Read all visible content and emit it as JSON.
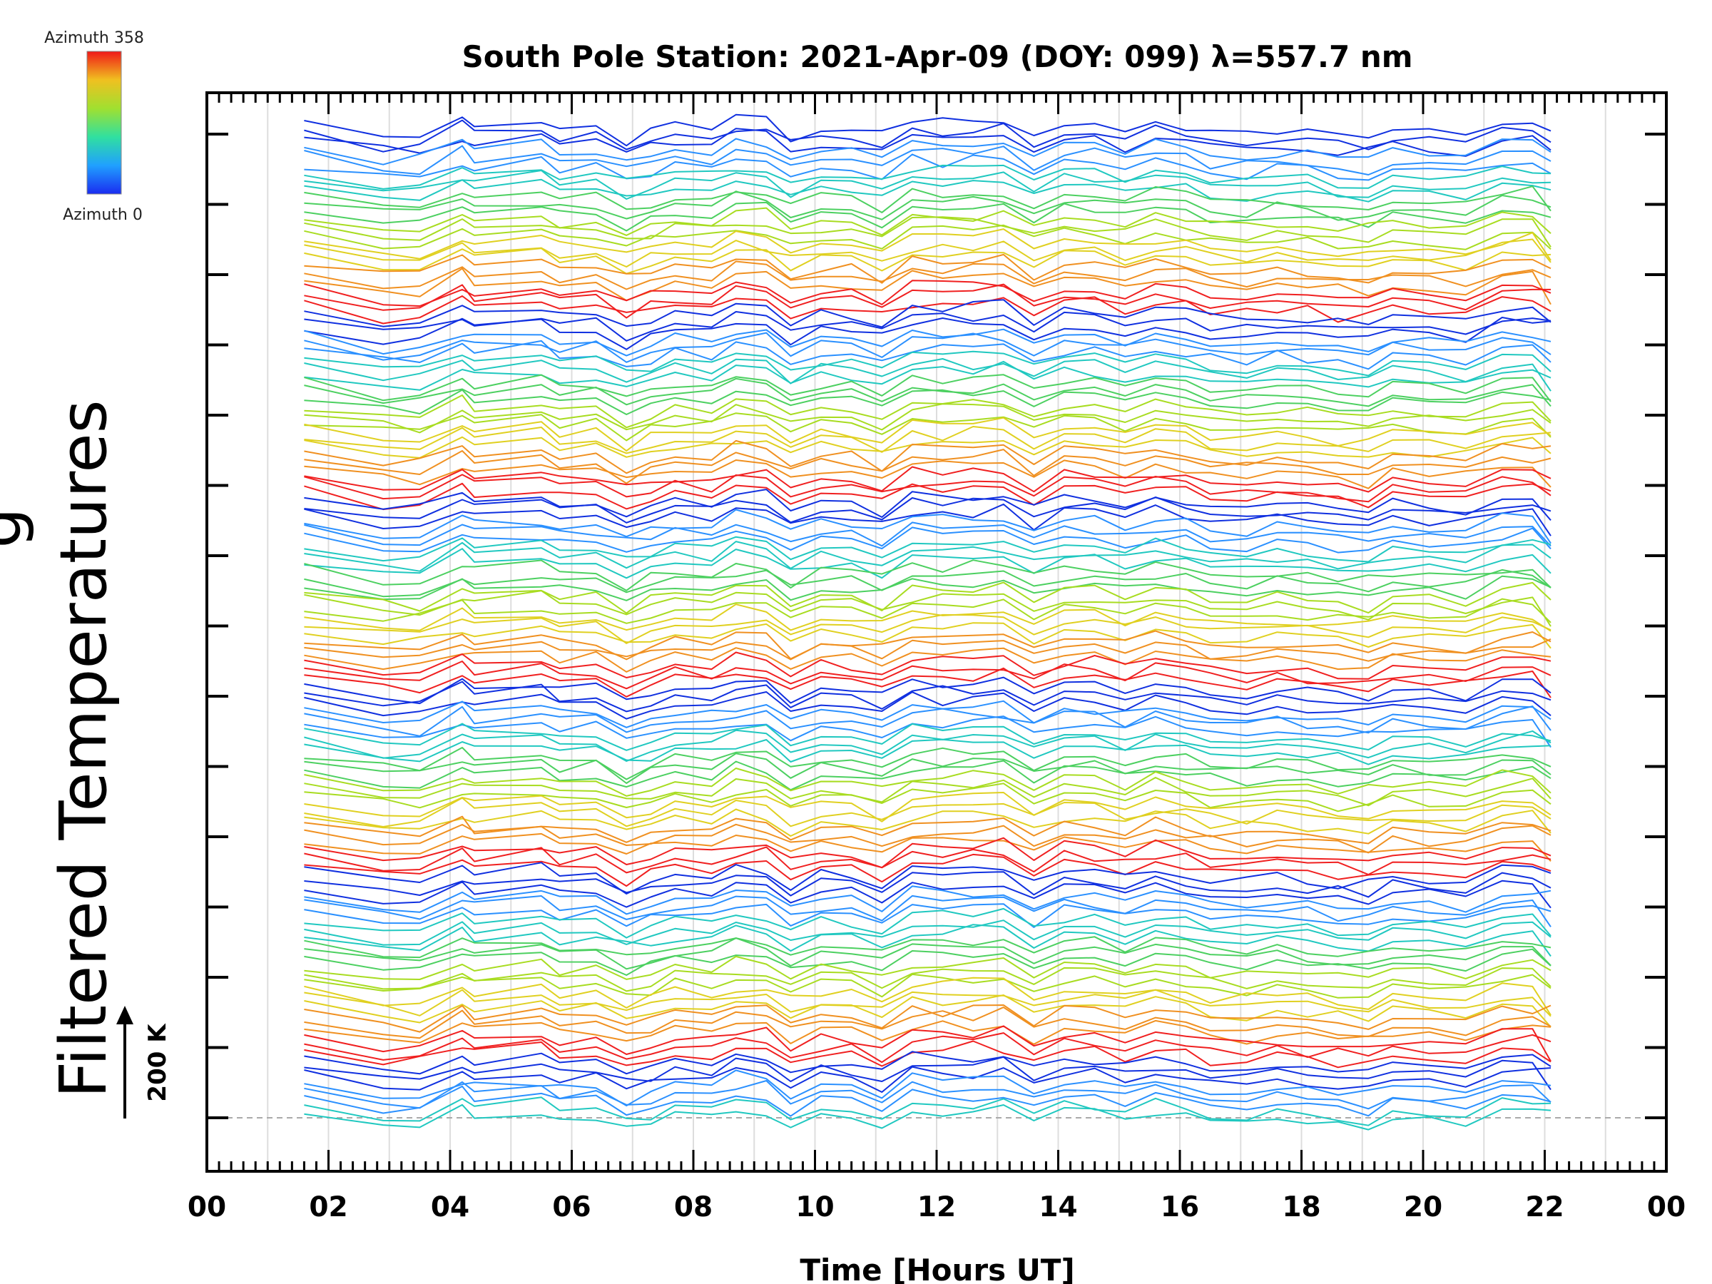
{
  "chart_data": {
    "type": "line",
    "title": "South Pole Station: 2021-Apr-09 (DOY: 099) λ=557.7 nm",
    "xlabel": "Time [Hours UT]",
    "ylabel": "Filtered Temperatures",
    "ylabel_fragment": "g",
    "xlim": [
      0,
      24
    ],
    "x_ticks": [
      "00",
      "02",
      "04",
      "06",
      "08",
      "10",
      "12",
      "14",
      "16",
      "18",
      "20",
      "22",
      "00"
    ],
    "y_tick_count": 15,
    "grid": "vertical",
    "colorbar": {
      "top_label": "Azimuth 358",
      "bottom_label": "Azimuth 0",
      "colormap": "rainbow (blue to red)"
    },
    "scale_bar": {
      "label": "200 K",
      "value_k": 200
    },
    "trace_count": 128,
    "time_range_hours": [
      1.6,
      22.1
    ],
    "time_samples": [
      1.6,
      2.9,
      3.5,
      4.2,
      4.4,
      5.5,
      5.8,
      6.4,
      6.9,
      7.3,
      7.7,
      8.3,
      8.7,
      9.2,
      9.6,
      10.1,
      10.6,
      11.1,
      11.6,
      12.1,
      12.6,
      13.1,
      13.6,
      14.1,
      14.6,
      15.1,
      15.6,
      16.1,
      16.5,
      17.1,
      17.6,
      18.1,
      18.6,
      19.1,
      19.5,
      20.1,
      20.7,
      21.3,
      21.8,
      22.1
    ],
    "series_colors": [
      "#1030e0",
      "#2a90ff",
      "#20c8c0",
      "#4cd060",
      "#a8dc20",
      "#e0d020",
      "#f09020",
      "#f02020"
    ]
  }
}
